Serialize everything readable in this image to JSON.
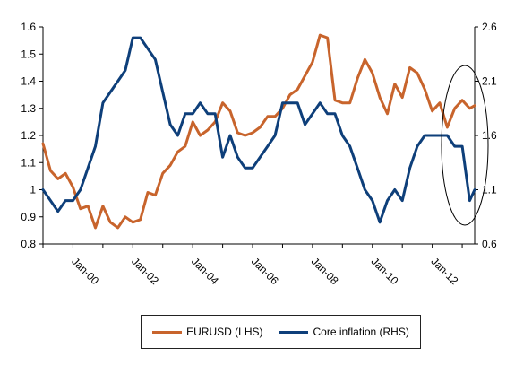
{
  "chart_data": {
    "type": "line",
    "title": "",
    "xlabel": "",
    "x_tick_labels": [
      "Jan-00",
      "Jan-02",
      "Jan-04",
      "Jan-06",
      "Jan-08",
      "Jan-10",
      "Jan-12"
    ],
    "x_range": [
      "1999-01",
      "2013-06"
    ],
    "y_left": {
      "ylim": [
        0.8,
        1.6
      ],
      "ticks": [
        "0.8",
        "0.9",
        "1",
        "1.1",
        "1.2",
        "1.3",
        "1.4",
        "1.5",
        "1.6"
      ]
    },
    "y_right": {
      "ylim": [
        0.6,
        2.6
      ],
      "ticks": [
        "0.6",
        "1.1",
        "1.6",
        "2.1",
        "2.6"
      ]
    },
    "grid": false,
    "legend_position": "bottom",
    "annotation": "ellipse highlighting 2012-2013",
    "series": [
      {
        "name": "EURUSD (LHS)",
        "axis": "left",
        "color": "#C8642C",
        "points": [
          [
            "1999-01",
            1.17
          ],
          [
            "1999-04",
            1.07
          ],
          [
            "1999-07",
            1.04
          ],
          [
            "1999-10",
            1.06
          ],
          [
            "2000-01",
            1.01
          ],
          [
            "2000-04",
            0.93
          ],
          [
            "2000-07",
            0.94
          ],
          [
            "2000-10",
            0.86
          ],
          [
            "2001-01",
            0.94
          ],
          [
            "2001-04",
            0.88
          ],
          [
            "2001-07",
            0.86
          ],
          [
            "2001-10",
            0.9
          ],
          [
            "2002-01",
            0.88
          ],
          [
            "2002-04",
            0.89
          ],
          [
            "2002-07",
            0.99
          ],
          [
            "2002-10",
            0.98
          ],
          [
            "2003-01",
            1.06
          ],
          [
            "2003-04",
            1.09
          ],
          [
            "2003-07",
            1.14
          ],
          [
            "2003-10",
            1.16
          ],
          [
            "2004-01",
            1.25
          ],
          [
            "2004-04",
            1.2
          ],
          [
            "2004-07",
            1.22
          ],
          [
            "2004-10",
            1.25
          ],
          [
            "2005-01",
            1.32
          ],
          [
            "2005-04",
            1.29
          ],
          [
            "2005-07",
            1.21
          ],
          [
            "2005-10",
            1.2
          ],
          [
            "2006-01",
            1.21
          ],
          [
            "2006-04",
            1.23
          ],
          [
            "2006-07",
            1.27
          ],
          [
            "2006-10",
            1.27
          ],
          [
            "2007-01",
            1.3
          ],
          [
            "2007-04",
            1.35
          ],
          [
            "2007-07",
            1.37
          ],
          [
            "2007-10",
            1.42
          ],
          [
            "2008-01",
            1.47
          ],
          [
            "2008-04",
            1.57
          ],
          [
            "2008-07",
            1.56
          ],
          [
            "2008-10",
            1.33
          ],
          [
            "2009-01",
            1.32
          ],
          [
            "2009-04",
            1.32
          ],
          [
            "2009-07",
            1.41
          ],
          [
            "2009-10",
            1.48
          ],
          [
            "2010-01",
            1.43
          ],
          [
            "2010-04",
            1.34
          ],
          [
            "2010-07",
            1.28
          ],
          [
            "2010-10",
            1.39
          ],
          [
            "2011-01",
            1.34
          ],
          [
            "2011-04",
            1.45
          ],
          [
            "2011-07",
            1.43
          ],
          [
            "2011-10",
            1.37
          ],
          [
            "2012-01",
            1.29
          ],
          [
            "2012-04",
            1.32
          ],
          [
            "2012-07",
            1.23
          ],
          [
            "2012-10",
            1.3
          ],
          [
            "2013-01",
            1.33
          ],
          [
            "2013-04",
            1.3
          ],
          [
            "2013-06",
            1.31
          ]
        ]
      },
      {
        "name": "Core inflation (RHS)",
        "axis": "right",
        "color": "#0E3F7A",
        "points": [
          [
            "1999-01",
            1.1
          ],
          [
            "1999-04",
            1.0
          ],
          [
            "1999-07",
            0.9
          ],
          [
            "1999-10",
            1.0
          ],
          [
            "2000-01",
            1.0
          ],
          [
            "2000-04",
            1.1
          ],
          [
            "2000-07",
            1.3
          ],
          [
            "2000-10",
            1.5
          ],
          [
            "2001-01",
            1.9
          ],
          [
            "2001-04",
            2.0
          ],
          [
            "2001-07",
            2.1
          ],
          [
            "2001-10",
            2.2
          ],
          [
            "2002-01",
            2.5
          ],
          [
            "2002-04",
            2.5
          ],
          [
            "2002-07",
            2.4
          ],
          [
            "2002-10",
            2.3
          ],
          [
            "2003-01",
            2.0
          ],
          [
            "2003-04",
            1.7
          ],
          [
            "2003-07",
            1.6
          ],
          [
            "2003-10",
            1.8
          ],
          [
            "2004-01",
            1.8
          ],
          [
            "2004-04",
            1.9
          ],
          [
            "2004-07",
            1.8
          ],
          [
            "2004-10",
            1.8
          ],
          [
            "2005-01",
            1.4
          ],
          [
            "2005-04",
            1.6
          ],
          [
            "2005-07",
            1.4
          ],
          [
            "2005-10",
            1.3
          ],
          [
            "2006-01",
            1.3
          ],
          [
            "2006-04",
            1.4
          ],
          [
            "2006-07",
            1.5
          ],
          [
            "2006-10",
            1.6
          ],
          [
            "2007-01",
            1.9
          ],
          [
            "2007-04",
            1.9
          ],
          [
            "2007-07",
            1.9
          ],
          [
            "2007-10",
            1.7
          ],
          [
            "2008-01",
            1.8
          ],
          [
            "2008-04",
            1.9
          ],
          [
            "2008-07",
            1.8
          ],
          [
            "2008-10",
            1.8
          ],
          [
            "2009-01",
            1.6
          ],
          [
            "2009-04",
            1.5
          ],
          [
            "2009-07",
            1.3
          ],
          [
            "2009-10",
            1.1
          ],
          [
            "2010-01",
            1.0
          ],
          [
            "2010-04",
            0.8
          ],
          [
            "2010-07",
            1.0
          ],
          [
            "2010-10",
            1.1
          ],
          [
            "2011-01",
            1.0
          ],
          [
            "2011-04",
            1.3
          ],
          [
            "2011-07",
            1.5
          ],
          [
            "2011-10",
            1.6
          ],
          [
            "2012-01",
            1.6
          ],
          [
            "2012-04",
            1.6
          ],
          [
            "2012-07",
            1.6
          ],
          [
            "2012-10",
            1.5
          ],
          [
            "2013-01",
            1.5
          ],
          [
            "2013-04",
            1.0
          ],
          [
            "2013-06",
            1.1
          ]
        ]
      }
    ]
  }
}
